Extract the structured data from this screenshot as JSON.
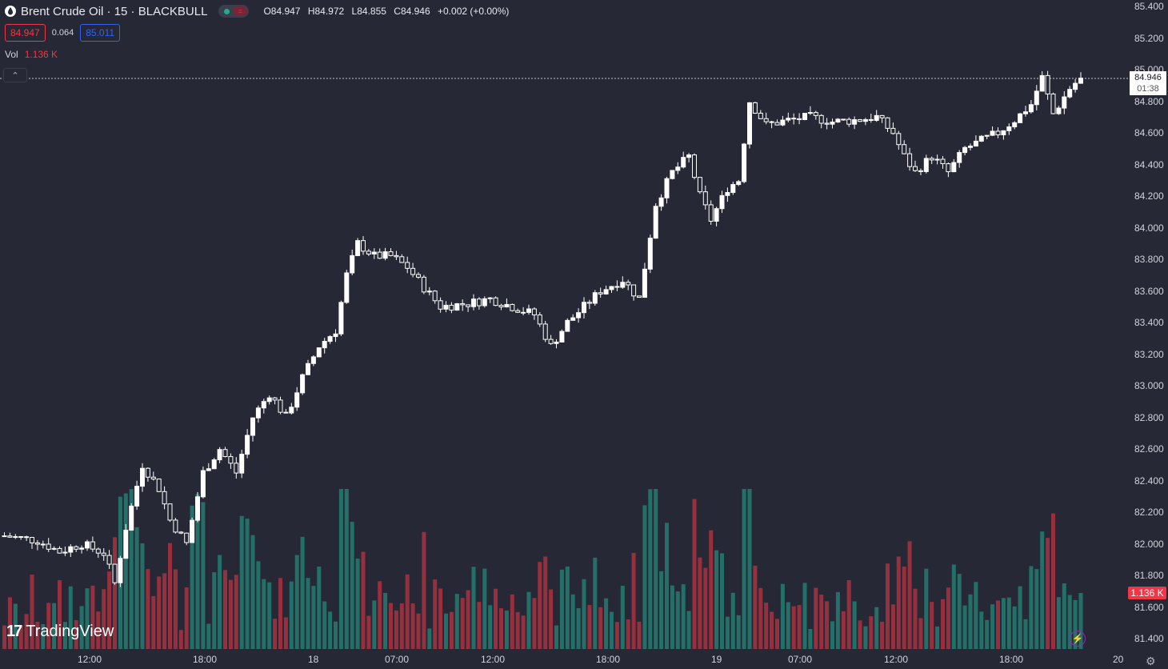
{
  "header": {
    "symbol": "Brent Crude Oil · 15 · BLACKBULL",
    "ohlc": {
      "open": "O84.947",
      "high": "H84.972",
      "low": "L84.855",
      "close": "C84.946",
      "change": "+0.002 (+0.00%)"
    },
    "bid": "84.947",
    "spread": "0.064",
    "ask": "85.011",
    "volume_label": "Vol",
    "volume_value": "1.136 K"
  },
  "price_scale": {
    "labels": [
      "85.400",
      "85.200",
      "85.000",
      "84.800",
      "84.600",
      "84.400",
      "84.200",
      "84.000",
      "83.800",
      "83.600",
      "83.400",
      "83.200",
      "83.000",
      "82.800",
      "82.600",
      "82.400",
      "82.200",
      "82.000",
      "81.800",
      "81.600",
      "81.400"
    ],
    "last_price": "84.946",
    "countdown": "01:38",
    "volume_tag": "1.136 K"
  },
  "time_scale": {
    "labels": [
      "12:00",
      "18:00",
      "18",
      "07:00",
      "12:00",
      "18:00",
      "19",
      "07:00",
      "12:00",
      "18:00",
      "20"
    ]
  },
  "branding": {
    "logo_text": "TradingView"
  },
  "colors": {
    "background": "#262935",
    "up": "#ffffff",
    "down": "#ffffff",
    "vol_up": "#22ab94",
    "vol_down": "#f23645"
  },
  "chart_data": {
    "type": "candlestick",
    "interval": "15",
    "ylim": [
      81.38,
      85.42
    ],
    "anchors": [
      [
        0,
        82.05
      ],
      [
        6,
        82.02
      ],
      [
        10,
        81.95
      ],
      [
        14,
        82.0
      ],
      [
        18,
        81.94
      ],
      [
        20,
        81.75
      ],
      [
        22,
        82.1
      ],
      [
        25,
        82.5
      ],
      [
        28,
        82.35
      ],
      [
        30,
        82.15
      ],
      [
        33,
        82.0
      ],
      [
        36,
        82.45
      ],
      [
        39,
        82.6
      ],
      [
        42,
        82.45
      ],
      [
        45,
        82.8
      ],
      [
        48,
        82.95
      ],
      [
        51,
        82.8
      ],
      [
        54,
        83.05
      ],
      [
        57,
        83.25
      ],
      [
        60,
        83.35
      ],
      [
        62,
        83.7
      ],
      [
        64,
        83.9
      ],
      [
        67,
        83.82
      ],
      [
        70,
        83.82
      ],
      [
        73,
        83.75
      ],
      [
        76,
        83.62
      ],
      [
        79,
        83.5
      ],
      [
        84,
        83.52
      ],
      [
        88,
        83.55
      ],
      [
        92,
        83.5
      ],
      [
        96,
        83.45
      ],
      [
        99,
        83.25
      ],
      [
        102,
        83.4
      ],
      [
        105,
        83.5
      ],
      [
        108,
        83.6
      ],
      [
        112,
        83.67
      ],
      [
        115,
        83.55
      ],
      [
        118,
        84.15
      ],
      [
        121,
        84.35
      ],
      [
        124,
        84.45
      ],
      [
        126,
        84.2
      ],
      [
        128,
        84.05
      ],
      [
        131,
        84.25
      ],
      [
        133,
        84.3
      ],
      [
        135,
        84.8
      ],
      [
        138,
        84.65
      ],
      [
        142,
        84.68
      ],
      [
        146,
        84.7
      ],
      [
        150,
        84.67
      ],
      [
        154,
        84.68
      ],
      [
        158,
        84.7
      ],
      [
        161,
        84.6
      ],
      [
        163,
        84.45
      ],
      [
        165,
        84.35
      ],
      [
        168,
        84.45
      ],
      [
        171,
        84.35
      ],
      [
        174,
        84.5
      ],
      [
        177,
        84.55
      ],
      [
        180,
        84.6
      ],
      [
        183,
        84.68
      ],
      [
        186,
        84.78
      ],
      [
        188,
        84.95
      ],
      [
        190,
        84.72
      ],
      [
        193,
        84.88
      ],
      [
        195,
        84.95
      ]
    ],
    "volume_range": [
      0,
      2500
    ],
    "note_last_volume": "1.136 K"
  }
}
